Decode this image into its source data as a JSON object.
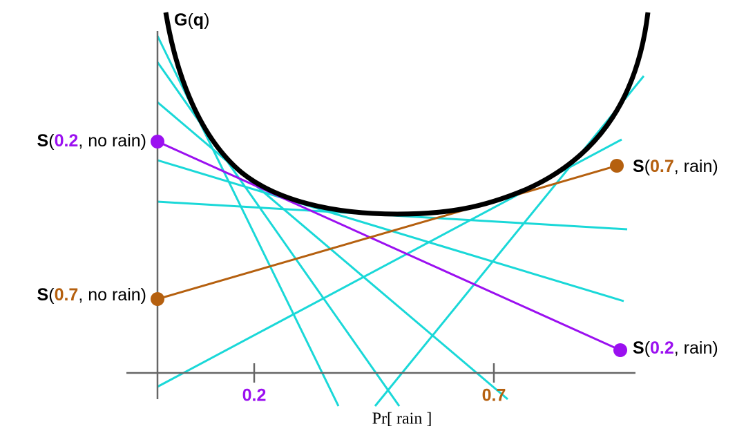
{
  "curve_label": {
    "parts": [
      "G",
      "(",
      "q",
      ")"
    ]
  },
  "points": [
    {
      "parts": [
        "S",
        "(",
        "0.2",
        ", no rain)"
      ]
    },
    {
      "parts": [
        "S",
        "(",
        "0.7",
        ", no rain)"
      ]
    },
    {
      "parts": [
        "S",
        "(",
        "0.7",
        ", rain)"
      ]
    },
    {
      "parts": [
        "S",
        "(",
        "0.2",
        ", rain)"
      ]
    }
  ],
  "axis": {
    "ticks": [
      "0.2",
      "0.7"
    ],
    "label": "Pr[ rain ]"
  }
}
